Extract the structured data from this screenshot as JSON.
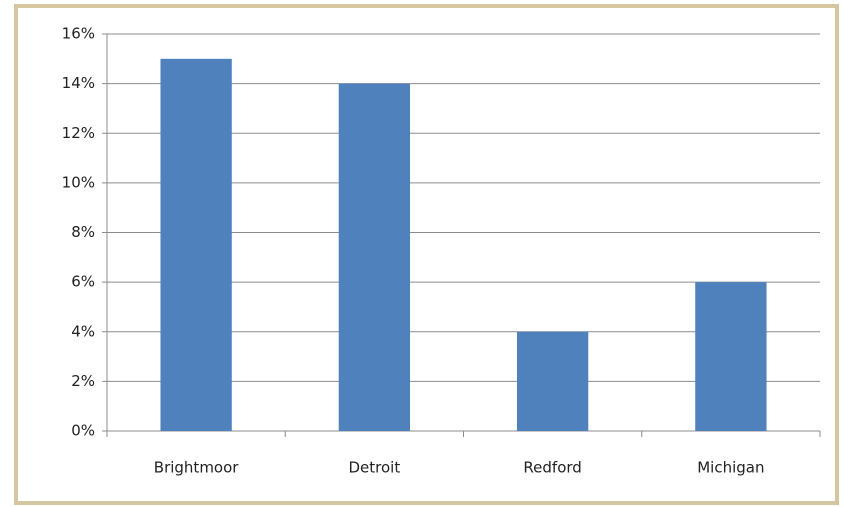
{
  "chart_data": {
    "type": "bar",
    "categories": [
      "Brightmoor",
      "Detroit",
      "Redford",
      "Michigan"
    ],
    "values": [
      15,
      14,
      4,
      6
    ],
    "color": "#4f81bd",
    "ylim": [
      0,
      16
    ],
    "yticks": [
      {
        "value": 0,
        "label": "0%"
      },
      {
        "value": 2,
        "label": "2%"
      },
      {
        "value": 4,
        "label": "4%"
      },
      {
        "value": 6,
        "label": "6%"
      },
      {
        "value": 8,
        "label": "8%"
      },
      {
        "value": 10,
        "label": "10%"
      },
      {
        "value": 12,
        "label": "12%"
      },
      {
        "value": 14,
        "label": "14%"
      },
      {
        "value": 16,
        "label": "16%"
      }
    ],
    "grid": true
  }
}
